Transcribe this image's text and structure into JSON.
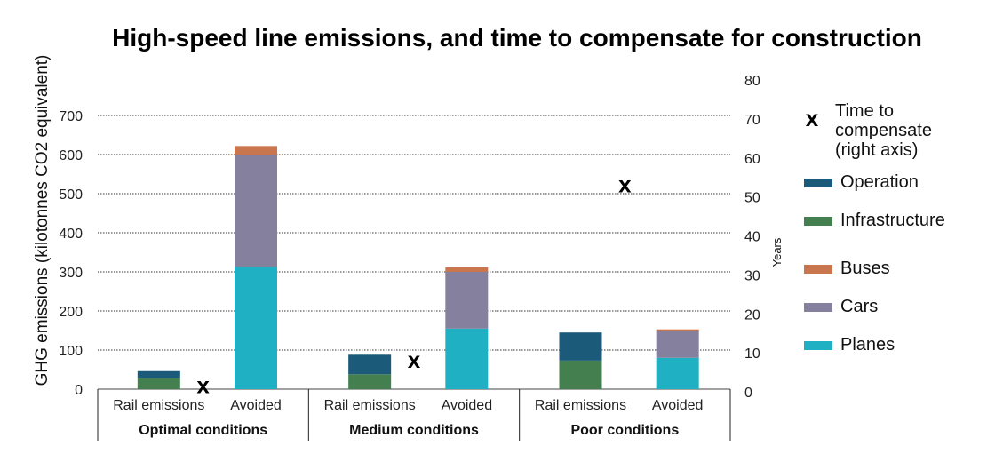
{
  "chart_data": {
    "type": "bar",
    "title": "High-speed line emissions, and time to compensate for construction",
    "ylabel": "GHG emissions (kilotonnes CO2 equivalent)",
    "y2label": "Years",
    "ylim": [
      0,
      700
    ],
    "y2lim": [
      0,
      80
    ],
    "yticks": [
      "0",
      "100",
      "200",
      "300",
      "400",
      "500",
      "600",
      "700"
    ],
    "y2ticks": [
      "0",
      "10",
      "20",
      "30",
      "40",
      "50",
      "60",
      "70",
      "80"
    ],
    "grid": true,
    "legend_position": "right",
    "groups": [
      {
        "name": "Optimal conditions",
        "bars": [
          {
            "label": "Rail emissions",
            "stack": [
              {
                "series": "Infrastructure",
                "value": 28
              },
              {
                "series": "Operation",
                "value": 18
              }
            ]
          },
          {
            "label": "Avoided",
            "stack": [
              {
                "series": "Planes",
                "value": 313
              },
              {
                "series": "Cars",
                "value": 287
              },
              {
                "series": "Buses",
                "value": 22
              }
            ]
          }
        ],
        "time_to_compensate": 1.5
      },
      {
        "name": "Medium conditions",
        "bars": [
          {
            "label": "Rail emissions",
            "stack": [
              {
                "series": "Infrastructure",
                "value": 38
              },
              {
                "series": "Operation",
                "value": 50
              }
            ]
          },
          {
            "label": "Avoided",
            "stack": [
              {
                "series": "Planes",
                "value": 155
              },
              {
                "series": "Cars",
                "value": 145
              },
              {
                "series": "Buses",
                "value": 12
              }
            ]
          }
        ],
        "time_to_compensate": 8
      },
      {
        "name": "Poor conditions",
        "bars": [
          {
            "label": "Rail emissions",
            "stack": [
              {
                "series": "Infrastructure",
                "value": 73
              },
              {
                "series": "Operation",
                "value": 72
              }
            ]
          },
          {
            "label": "Avoided",
            "stack": [
              {
                "series": "Planes",
                "value": 80
              },
              {
                "series": "Cars",
                "value": 69
              },
              {
                "series": "Buses",
                "value": 4
              }
            ]
          }
        ],
        "time_to_compensate": 53
      }
    ],
    "legend": [
      {
        "key": "Time to compensate",
        "label": "Time to compensate (right axis)",
        "lines": [
          "Time to",
          "compensate",
          "(right axis)"
        ],
        "marker": "x"
      },
      {
        "key": "Operation",
        "label": "Operation",
        "color": "#1b5a78"
      },
      {
        "key": "Infrastructure",
        "label": "Infrastructure",
        "color": "#44804f"
      },
      {
        "key": "Buses",
        "label": "Buses",
        "color": "#c9764f"
      },
      {
        "key": "Cars",
        "label": "Cars",
        "color": "#85809e"
      },
      {
        "key": "Planes",
        "label": "Planes",
        "color": "#1fb1c3"
      }
    ],
    "marker_symbol": "x"
  }
}
